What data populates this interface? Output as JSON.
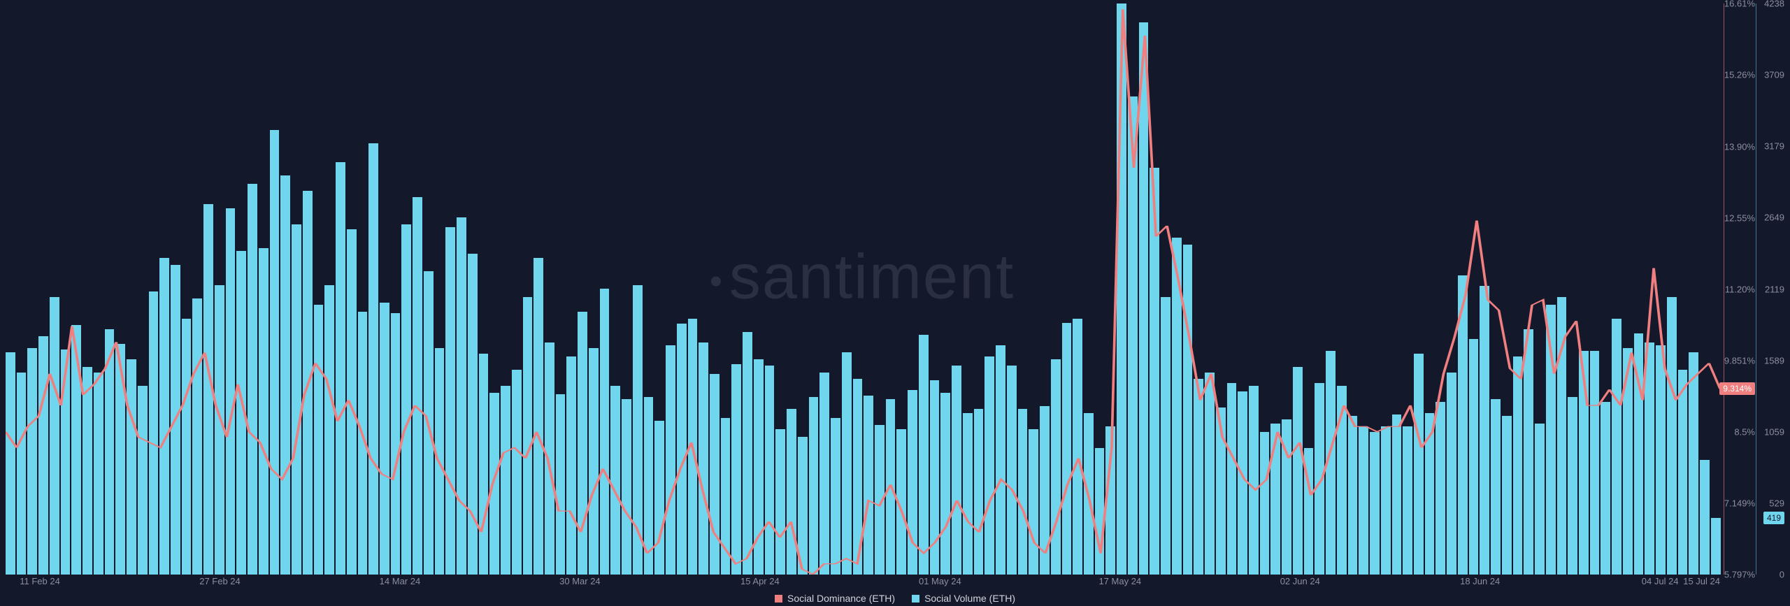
{
  "watermark": "santiment",
  "chart": {
    "type": "bar+line",
    "background_color": "#14182b",
    "bar_color": "#6fd6ed",
    "line_color": "#f08080",
    "grid_color": "#8a8f9f",
    "volume_series": [
      1650,
      1500,
      1680,
      1770,
      2060,
      1670,
      1850,
      1540,
      1500,
      1820,
      1710,
      1600,
      1400,
      2100,
      2350,
      2300,
      1900,
      2050,
      2750,
      2150,
      2720,
      2400,
      2900,
      2420,
      3300,
      2960,
      2600,
      2850,
      2000,
      2150,
      3060,
      2560,
      1950,
      3200,
      2020,
      1940,
      2600,
      2800,
      2250,
      1680,
      2580,
      2650,
      2380,
      1640,
      1350,
      1400,
      1520,
      2060,
      2350,
      1720,
      1340,
      1620,
      1950,
      1680,
      2120,
      1400,
      1300,
      2150,
      1320,
      1140,
      1700,
      1860,
      1900,
      1720,
      1490,
      1160,
      1560,
      1800,
      1600,
      1550,
      1080,
      1230,
      1020,
      1320,
      1500,
      1160,
      1650,
      1450,
      1330,
      1110,
      1300,
      1080,
      1370,
      1780,
      1440,
      1350,
      1550,
      1200,
      1230,
      1620,
      1700,
      1550,
      1230,
      1080,
      1250,
      1600,
      1870,
      1900,
      1200,
      940,
      1100,
      4238,
      3550,
      4100,
      3020,
      2060,
      2500,
      2450,
      1450,
      1500,
      1240,
      1420,
      1360,
      1400,
      1060,
      1120,
      1150,
      1540,
      940,
      1420,
      1660,
      1400,
      1180,
      1100,
      1060,
      1100,
      1190,
      1100,
      1640,
      1200,
      1280,
      1500,
      2220,
      1750,
      2140,
      1300,
      1180,
      1620,
      1820,
      1120,
      2000,
      2060,
      1320,
      1660,
      1660,
      1280,
      1900,
      1680,
      1790,
      1720,
      1700,
      2060,
      1520,
      1650,
      850,
      419
    ],
    "dominance_series": [
      8.5,
      8.2,
      8.6,
      8.8,
      9.6,
      9.0,
      10.5,
      9.2,
      9.4,
      9.7,
      10.2,
      9.0,
      8.4,
      8.3,
      8.2,
      8.6,
      9.0,
      9.6,
      10.0,
      9.0,
      8.4,
      9.4,
      8.5,
      8.3,
      7.8,
      7.6,
      8.0,
      9.2,
      9.8,
      9.5,
      8.7,
      9.1,
      8.6,
      8.0,
      7.7,
      7.6,
      8.5,
      9.0,
      8.8,
      8.0,
      7.6,
      7.2,
      7.0,
      6.6,
      7.5,
      8.1,
      8.2,
      8.0,
      8.5,
      8.0,
      7.0,
      7.0,
      6.6,
      7.3,
      7.8,
      7.4,
      7.0,
      6.7,
      6.2,
      6.4,
      7.2,
      7.8,
      8.3,
      7.4,
      6.6,
      6.3,
      6.0,
      6.1,
      6.5,
      6.8,
      6.5,
      6.8,
      5.9,
      5.8,
      6.0,
      6.0,
      6.1,
      6.0,
      7.2,
      7.1,
      7.5,
      7.0,
      6.4,
      6.2,
      6.4,
      6.7,
      7.2,
      6.8,
      6.6,
      7.2,
      7.6,
      7.4,
      7.0,
      6.4,
      6.2,
      6.8,
      7.5,
      8.0,
      7.2,
      6.2,
      8.2,
      16.5,
      13.5,
      16.0,
      12.2,
      12.4,
      11.4,
      10.3,
      9.1,
      9.6,
      8.4,
      8.0,
      7.6,
      7.4,
      7.6,
      8.5,
      8.0,
      8.3,
      7.3,
      7.6,
      8.3,
      9.0,
      8.6,
      8.6,
      8.5,
      8.6,
      8.6,
      9.0,
      8.2,
      8.5,
      9.6,
      10.3,
      11.1,
      12.5,
      11.0,
      10.8,
      9.7,
      9.5,
      10.9,
      11.0,
      9.6,
      10.3,
      10.6,
      9.0,
      9.0,
      9.3,
      9.0,
      10.0,
      9.1,
      11.6,
      9.7,
      9.1,
      9.4,
      9.6,
      9.8,
      9.314
    ],
    "volume_axis": {
      "min": 0,
      "max": 4238,
      "ticks": [
        {
          "v": 0,
          "l": "0"
        },
        {
          "v": 529,
          "l": "529"
        },
        {
          "v": 1059,
          "l": "1059"
        },
        {
          "v": 1589,
          "l": "1589"
        },
        {
          "v": 2119,
          "l": "2119"
        },
        {
          "v": 2649,
          "l": "2649"
        },
        {
          "v": 3179,
          "l": "3179"
        },
        {
          "v": 3709,
          "l": "3709"
        },
        {
          "v": 4238,
          "l": "4238"
        }
      ],
      "current_badge": "419"
    },
    "dominance_axis": {
      "min": 5.797,
      "max": 16.61,
      "ticks": [
        {
          "v": 5.797,
          "l": "5.797%"
        },
        {
          "v": 7.149,
          "l": "7.149%"
        },
        {
          "v": 8.5,
          "l": "8.5%"
        },
        {
          "v": 9.851,
          "l": "9.851%"
        },
        {
          "v": 11.2,
          "l": "11.20%"
        },
        {
          "v": 12.55,
          "l": "12.55%"
        },
        {
          "v": 13.9,
          "l": "13.90%"
        },
        {
          "v": 15.26,
          "l": "15.26%"
        },
        {
          "v": 16.61,
          "l": "16.61%"
        }
      ],
      "current_badge": "9.314%"
    },
    "x_axis": {
      "labels": [
        {
          "p": 0.02,
          "l": "11 Feb 24"
        },
        {
          "p": 0.125,
          "l": "27 Feb 24"
        },
        {
          "p": 0.23,
          "l": "14 Mar 24"
        },
        {
          "p": 0.335,
          "l": "30 Mar 24"
        },
        {
          "p": 0.44,
          "l": "15 Apr 24"
        },
        {
          "p": 0.545,
          "l": "01 May 24"
        },
        {
          "p": 0.65,
          "l": "17 May 24"
        },
        {
          "p": 0.755,
          "l": "02 Jun 24"
        },
        {
          "p": 0.86,
          "l": "18 Jun 24"
        },
        {
          "p": 0.965,
          "l": "04 Jul 24"
        },
        {
          "p": 1.0,
          "l": "15 Jul 24"
        }
      ]
    }
  },
  "legend": {
    "items": [
      {
        "label": "Social Dominance (ETH)",
        "color": "#f08080"
      },
      {
        "label": "Social Volume (ETH)",
        "color": "#6fd6ed"
      }
    ]
  }
}
